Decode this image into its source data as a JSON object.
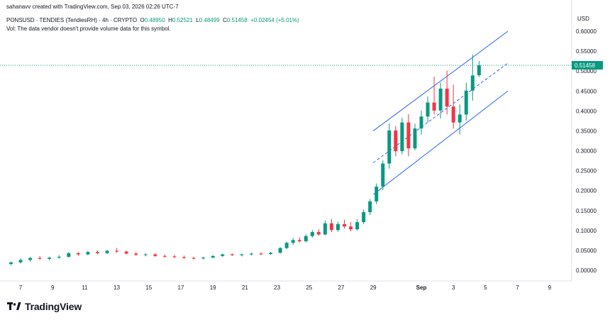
{
  "header": {
    "creator_line": "sahanavv created with TradingView.com, Sep 03, 2026 02:26 UTC-7",
    "symbol": "PONSUSD · TENDIES (TendiesRH) · 4h · CRYPTO",
    "o_label": "O",
    "o_value": "0.48950",
    "h_label": "H",
    "h_value": "0.52521",
    "l_label": "L",
    "l_value": "0.48499",
    "c_label": "C",
    "c_value": "0.51458",
    "change": "+0.02454 (+5.01%)",
    "vol_note": "Vol: The data vendor doesn't provide volume data for this symbol."
  },
  "currency_label": "USD",
  "brand": {
    "name": "TradingView",
    "logo": "tradingview-logo-icon"
  },
  "colors": {
    "up": "#089981",
    "down": "#f23645",
    "channel": "#2962ff",
    "axis_text": "#131722",
    "price_tag": "#089981"
  },
  "chart_data": {
    "type": "candlestick",
    "title": "PONSUSD · TENDIES (TendiesRH) · 4h · CRYPTO",
    "xlabel": "",
    "ylabel": "USD",
    "y_ticks": [
      "0.60000",
      "0.55000",
      "0.50000",
      "0.45000",
      "0.40000",
      "0.35000",
      "0.30000",
      "0.25000",
      "0.20000",
      "0.15000",
      "0.10000",
      "0.05000",
      "0.00000"
    ],
    "ylim": [
      -0.02,
      0.64
    ],
    "x_ticks": [
      {
        "label": "7",
        "day": 7
      },
      {
        "label": "9",
        "day": 9
      },
      {
        "label": "11",
        "day": 11
      },
      {
        "label": "13",
        "day": 13
      },
      {
        "label": "15",
        "day": 15
      },
      {
        "label": "17",
        "day": 17
      },
      {
        "label": "19",
        "day": 19
      },
      {
        "label": "21",
        "day": 21
      },
      {
        "label": "23",
        "day": 23
      },
      {
        "label": "25",
        "day": 25
      },
      {
        "label": "27",
        "day": 27
      },
      {
        "label": "29",
        "day": 29
      },
      {
        "label": "Sep",
        "day": 32
      },
      {
        "label": "3",
        "day": 34
      },
      {
        "label": "5",
        "day": 36
      },
      {
        "label": "7",
        "day": 38
      },
      {
        "label": "9",
        "day": 40
      }
    ],
    "x_axis": "days from Aug 1 (Sep 1 = 32)",
    "last_price": "0.51458",
    "last_price_value": 0.51458,
    "candles": [
      {
        "d": 6.4,
        "o": 0.016,
        "h": 0.022,
        "l": 0.012,
        "c": 0.02
      },
      {
        "d": 7.0,
        "o": 0.02,
        "h": 0.03,
        "l": 0.017,
        "c": 0.026
      },
      {
        "d": 7.6,
        "o": 0.026,
        "h": 0.034,
        "l": 0.022,
        "c": 0.031
      },
      {
        "d": 8.2,
        "o": 0.031,
        "h": 0.036,
        "l": 0.026,
        "c": 0.029
      },
      {
        "d": 8.8,
        "o": 0.029,
        "h": 0.034,
        "l": 0.025,
        "c": 0.032
      },
      {
        "d": 9.4,
        "o": 0.032,
        "h": 0.038,
        "l": 0.029,
        "c": 0.034
      },
      {
        "d": 10.0,
        "o": 0.034,
        "h": 0.046,
        "l": 0.032,
        "c": 0.043
      },
      {
        "d": 10.6,
        "o": 0.043,
        "h": 0.046,
        "l": 0.036,
        "c": 0.04
      },
      {
        "d": 11.2,
        "o": 0.04,
        "h": 0.049,
        "l": 0.038,
        "c": 0.046
      },
      {
        "d": 11.8,
        "o": 0.046,
        "h": 0.05,
        "l": 0.04,
        "c": 0.043
      },
      {
        "d": 12.4,
        "o": 0.043,
        "h": 0.052,
        "l": 0.041,
        "c": 0.049
      },
      {
        "d": 13.0,
        "o": 0.049,
        "h": 0.056,
        "l": 0.044,
        "c": 0.047
      },
      {
        "d": 13.6,
        "o": 0.047,
        "h": 0.05,
        "l": 0.04,
        "c": 0.042
      },
      {
        "d": 14.2,
        "o": 0.042,
        "h": 0.046,
        "l": 0.036,
        "c": 0.039
      },
      {
        "d": 14.8,
        "o": 0.039,
        "h": 0.043,
        "l": 0.035,
        "c": 0.04
      },
      {
        "d": 15.4,
        "o": 0.04,
        "h": 0.043,
        "l": 0.034,
        "c": 0.036
      },
      {
        "d": 16.0,
        "o": 0.036,
        "h": 0.04,
        "l": 0.032,
        "c": 0.035
      },
      {
        "d": 16.6,
        "o": 0.035,
        "h": 0.039,
        "l": 0.031,
        "c": 0.033
      },
      {
        "d": 17.2,
        "o": 0.033,
        "h": 0.037,
        "l": 0.029,
        "c": 0.031
      },
      {
        "d": 17.8,
        "o": 0.031,
        "h": 0.034,
        "l": 0.027,
        "c": 0.03
      },
      {
        "d": 18.4,
        "o": 0.03,
        "h": 0.034,
        "l": 0.027,
        "c": 0.032
      },
      {
        "d": 19.0,
        "o": 0.032,
        "h": 0.038,
        "l": 0.03,
        "c": 0.036
      },
      {
        "d": 19.6,
        "o": 0.036,
        "h": 0.042,
        "l": 0.034,
        "c": 0.04
      },
      {
        "d": 20.2,
        "o": 0.04,
        "h": 0.043,
        "l": 0.036,
        "c": 0.038
      },
      {
        "d": 20.8,
        "o": 0.038,
        "h": 0.042,
        "l": 0.035,
        "c": 0.04
      },
      {
        "d": 21.4,
        "o": 0.04,
        "h": 0.044,
        "l": 0.037,
        "c": 0.042
      },
      {
        "d": 22.0,
        "o": 0.042,
        "h": 0.045,
        "l": 0.038,
        "c": 0.041
      },
      {
        "d": 22.6,
        "o": 0.041,
        "h": 0.046,
        "l": 0.039,
        "c": 0.044
      },
      {
        "d": 23.2,
        "o": 0.044,
        "h": 0.058,
        "l": 0.042,
        "c": 0.056
      },
      {
        "d": 23.6,
        "o": 0.056,
        "h": 0.072,
        "l": 0.053,
        "c": 0.069
      },
      {
        "d": 24.0,
        "o": 0.069,
        "h": 0.081,
        "l": 0.064,
        "c": 0.076
      },
      {
        "d": 24.4,
        "o": 0.076,
        "h": 0.083,
        "l": 0.07,
        "c": 0.073
      },
      {
        "d": 24.8,
        "o": 0.073,
        "h": 0.09,
        "l": 0.07,
        "c": 0.086
      },
      {
        "d": 25.2,
        "o": 0.086,
        "h": 0.101,
        "l": 0.082,
        "c": 0.096
      },
      {
        "d": 25.6,
        "o": 0.096,
        "h": 0.103,
        "l": 0.087,
        "c": 0.09
      },
      {
        "d": 26.0,
        "o": 0.09,
        "h": 0.125,
        "l": 0.088,
        "c": 0.118
      },
      {
        "d": 26.4,
        "o": 0.118,
        "h": 0.129,
        "l": 0.096,
        "c": 0.101
      },
      {
        "d": 26.8,
        "o": 0.101,
        "h": 0.122,
        "l": 0.097,
        "c": 0.116
      },
      {
        "d": 27.2,
        "o": 0.116,
        "h": 0.127,
        "l": 0.105,
        "c": 0.11
      },
      {
        "d": 27.6,
        "o": 0.11,
        "h": 0.121,
        "l": 0.098,
        "c": 0.103
      },
      {
        "d": 28.0,
        "o": 0.103,
        "h": 0.128,
        "l": 0.1,
        "c": 0.121
      },
      {
        "d": 28.4,
        "o": 0.121,
        "h": 0.153,
        "l": 0.116,
        "c": 0.146
      },
      {
        "d": 28.8,
        "o": 0.146,
        "h": 0.179,
        "l": 0.139,
        "c": 0.173
      },
      {
        "d": 29.2,
        "o": 0.173,
        "h": 0.218,
        "l": 0.166,
        "c": 0.21
      },
      {
        "d": 29.6,
        "o": 0.21,
        "h": 0.276,
        "l": 0.201,
        "c": 0.268
      },
      {
        "d": 30.0,
        "o": 0.268,
        "h": 0.369,
        "l": 0.255,
        "c": 0.351
      },
      {
        "d": 30.4,
        "o": 0.351,
        "h": 0.362,
        "l": 0.286,
        "c": 0.299
      },
      {
        "d": 30.8,
        "o": 0.299,
        "h": 0.383,
        "l": 0.291,
        "c": 0.371
      },
      {
        "d": 31.2,
        "o": 0.371,
        "h": 0.392,
        "l": 0.286,
        "c": 0.306
      },
      {
        "d": 31.6,
        "o": 0.306,
        "h": 0.368,
        "l": 0.301,
        "c": 0.356
      },
      {
        "d": 32.0,
        "o": 0.356,
        "h": 0.401,
        "l": 0.341,
        "c": 0.386
      },
      {
        "d": 32.4,
        "o": 0.386,
        "h": 0.436,
        "l": 0.371,
        "c": 0.421
      },
      {
        "d": 32.8,
        "o": 0.421,
        "h": 0.486,
        "l": 0.391,
        "c": 0.401
      },
      {
        "d": 33.2,
        "o": 0.401,
        "h": 0.471,
        "l": 0.381,
        "c": 0.456
      },
      {
        "d": 33.6,
        "o": 0.456,
        "h": 0.501,
        "l": 0.391,
        "c": 0.411
      },
      {
        "d": 34.0,
        "o": 0.411,
        "h": 0.466,
        "l": 0.356,
        "c": 0.371
      },
      {
        "d": 34.4,
        "o": 0.371,
        "h": 0.416,
        "l": 0.341,
        "c": 0.391
      },
      {
        "d": 34.8,
        "o": 0.391,
        "h": 0.471,
        "l": 0.376,
        "c": 0.451
      },
      {
        "d": 35.2,
        "o": 0.451,
        "h": 0.541,
        "l": 0.426,
        "c": 0.489
      },
      {
        "d": 35.6,
        "o": 0.4895,
        "h": 0.52521,
        "l": 0.48499,
        "c": 0.51458
      }
    ]
  }
}
